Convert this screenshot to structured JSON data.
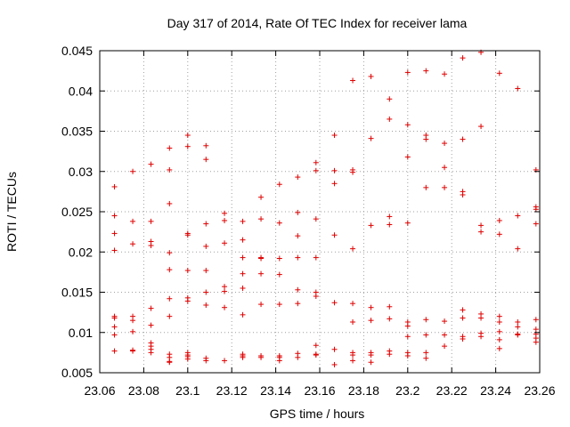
{
  "chart_data": {
    "type": "scatter",
    "title": "Day 317 of 2014, Rate Of TEC Index for receiver lama",
    "xlabel": "GPS time / hours",
    "ylabel": "ROTI / TECUs",
    "xlim": [
      23.06,
      23.26
    ],
    "ylim": [
      0.005,
      0.045
    ],
    "xticks": [
      "23.06",
      "23.08",
      "23.1",
      "23.12",
      "23.14",
      "23.16",
      "23.18",
      "23.2",
      "23.22",
      "23.24",
      "23.26"
    ],
    "yticks": [
      "0.005",
      "0.01",
      "0.015",
      "0.02",
      "0.025",
      "0.03",
      "0.035",
      "0.04",
      "0.045"
    ],
    "grid": true,
    "marker": "+",
    "series": [
      {
        "name": "ROTI",
        "color": "#e00000",
        "x": [
          23.0667,
          23.0667,
          23.0667,
          23.0667,
          23.0667,
          23.0667,
          23.0667,
          23.0667,
          23.0667,
          23.075,
          23.075,
          23.075,
          23.075,
          23.075,
          23.075,
          23.075,
          23.075,
          23.0833,
          23.0833,
          23.0833,
          23.0833,
          23.0833,
          23.0833,
          23.0833,
          23.0833,
          23.0833,
          23.0833,
          23.0917,
          23.0917,
          23.0917,
          23.0917,
          23.0917,
          23.0917,
          23.0917,
          23.0917,
          23.0917,
          23.0917,
          23.0917,
          23.1,
          23.1,
          23.1,
          23.1,
          23.1,
          23.1,
          23.1,
          23.1,
          23.1,
          23.1,
          23.1,
          23.1083,
          23.1083,
          23.1083,
          23.1083,
          23.1083,
          23.1083,
          23.1083,
          23.1083,
          23.1083,
          23.1167,
          23.1167,
          23.1167,
          23.1167,
          23.1167,
          23.1167,
          23.1167,
          23.125,
          23.125,
          23.125,
          23.125,
          23.125,
          23.125,
          23.125,
          23.125,
          23.125,
          23.1333,
          23.1333,
          23.1333,
          23.1333,
          23.1333,
          23.1333,
          23.1333,
          23.1333,
          23.1417,
          23.1417,
          23.1417,
          23.1417,
          23.1417,
          23.1417,
          23.1417,
          23.1417,
          23.15,
          23.15,
          23.15,
          23.15,
          23.15,
          23.15,
          23.15,
          23.15,
          23.1583,
          23.1583,
          23.1583,
          23.1583,
          23.1583,
          23.1583,
          23.1583,
          23.1583,
          23.1583,
          23.1667,
          23.1667,
          23.1667,
          23.1667,
          23.1667,
          23.1667,
          23.1667,
          23.175,
          23.175,
          23.175,
          23.175,
          23.175,
          23.175,
          23.175,
          23.175,
          23.175,
          23.1833,
          23.1833,
          23.1833,
          23.1833,
          23.1833,
          23.1833,
          23.1833,
          23.1833,
          23.1917,
          23.1917,
          23.1917,
          23.1917,
          23.1917,
          23.1917,
          23.1917,
          23.1917,
          23.2,
          23.2,
          23.2,
          23.2,
          23.2,
          23.2,
          23.2,
          23.2,
          23.2,
          23.2083,
          23.2083,
          23.2083,
          23.2083,
          23.2083,
          23.2083,
          23.2083,
          23.2083,
          23.2167,
          23.2167,
          23.2167,
          23.2167,
          23.2167,
          23.2167,
          23.2167,
          23.225,
          23.225,
          23.225,
          23.225,
          23.225,
          23.225,
          23.225,
          23.225,
          23.2333,
          23.2333,
          23.2333,
          23.2333,
          23.2333,
          23.2333,
          23.2333,
          23.2333,
          23.2417,
          23.2417,
          23.2417,
          23.2417,
          23.2417,
          23.2417,
          23.2417,
          23.2417,
          23.25,
          23.25,
          23.25,
          23.25,
          23.25,
          23.25,
          23.25,
          23.2583,
          23.2583,
          23.2583,
          23.2583,
          23.2583,
          23.2583,
          23.2583,
          23.2583,
          23.2583
        ],
        "y": [
          0.0281,
          0.0245,
          0.0223,
          0.0202,
          0.012,
          0.0118,
          0.0107,
          0.0097,
          0.0077,
          0.03,
          0.0238,
          0.021,
          0.012,
          0.0115,
          0.0101,
          0.0078,
          0.0077,
          0.0309,
          0.0238,
          0.0213,
          0.0208,
          0.013,
          0.0109,
          0.0087,
          0.0083,
          0.0079,
          0.0075,
          0.0329,
          0.0302,
          0.026,
          0.0199,
          0.0178,
          0.0142,
          0.012,
          0.0073,
          0.0069,
          0.0064,
          0.0063,
          0.0345,
          0.0331,
          0.0223,
          0.0221,
          0.0177,
          0.0143,
          0.0139,
          0.0075,
          0.0072,
          0.007,
          0.0067,
          0.0332,
          0.0315,
          0.0235,
          0.0207,
          0.0177,
          0.015,
          0.0134,
          0.0068,
          0.0065,
          0.0248,
          0.0239,
          0.0211,
          0.0157,
          0.0151,
          0.0131,
          0.0065,
          0.0238,
          0.0215,
          0.0193,
          0.0173,
          0.0155,
          0.0122,
          0.0073,
          0.0071,
          0.0069,
          0.0268,
          0.0241,
          0.0193,
          0.0192,
          0.0173,
          0.0135,
          0.0071,
          0.0069,
          0.0284,
          0.0236,
          0.0192,
          0.0172,
          0.0135,
          0.0071,
          0.0069,
          0.0065,
          0.0293,
          0.0249,
          0.022,
          0.0193,
          0.0153,
          0.0136,
          0.0074,
          0.0069,
          0.0311,
          0.0301,
          0.0241,
          0.0193,
          0.015,
          0.0145,
          0.0084,
          0.0073,
          0.0072,
          0.0345,
          0.0301,
          0.0285,
          0.0221,
          0.0137,
          0.0079,
          0.006,
          0.0413,
          0.0302,
          0.0299,
          0.0204,
          0.0136,
          0.0113,
          0.0075,
          0.0072,
          0.0065,
          0.0418,
          0.0341,
          0.0233,
          0.0131,
          0.0115,
          0.0075,
          0.0072,
          0.0063,
          0.039,
          0.0365,
          0.0244,
          0.0234,
          0.0132,
          0.0117,
          0.0077,
          0.0073,
          0.0423,
          0.0358,
          0.0318,
          0.0236,
          0.0113,
          0.0108,
          0.0095,
          0.0075,
          0.0071,
          0.0425,
          0.0345,
          0.034,
          0.028,
          0.0116,
          0.0097,
          0.0075,
          0.0068,
          0.0421,
          0.0335,
          0.0305,
          0.028,
          0.0114,
          0.0097,
          0.0083,
          0.0441,
          0.034,
          0.0275,
          0.0271,
          0.0128,
          0.0118,
          0.0095,
          0.0092,
          0.0448,
          0.0356,
          0.0233,
          0.0225,
          0.0123,
          0.0118,
          0.0099,
          0.0095,
          0.0422,
          0.0239,
          0.0222,
          0.012,
          0.0113,
          0.0101,
          0.0091,
          0.008,
          0.0403,
          0.0245,
          0.0204,
          0.0113,
          0.0107,
          0.0098,
          0.0097,
          0.0302,
          0.0256,
          0.0253,
          0.0235,
          0.0116,
          0.0104,
          0.0098,
          0.0093,
          0.0088
        ]
      }
    ]
  }
}
